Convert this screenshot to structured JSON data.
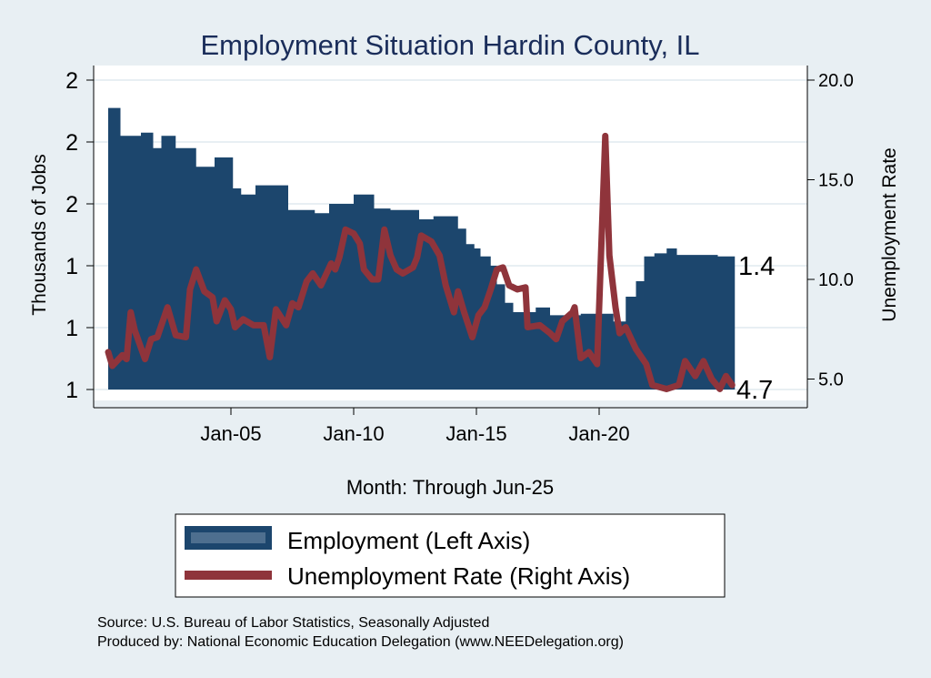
{
  "chart_data": {
    "type": "bar+line",
    "title": "Employment Situation Hardin  County, IL",
    "xlabel": "Month: Through Jun-25",
    "ylabel_left": "Thousands of Jobs",
    "ylabel_right": "Unemployment Rate",
    "x_ticks": [
      {
        "date": "2005-01",
        "label": "Jan-05"
      },
      {
        "date": "2010-01",
        "label": "Jan-10"
      },
      {
        "date": "2015-01",
        "label": "Jan-15"
      },
      {
        "date": "2020-01",
        "label": "Jan-20"
      }
    ],
    "y_left_ticks": [
      {
        "value": 2.0,
        "label": "2"
      },
      {
        "value": 1.8,
        "label": "2"
      },
      {
        "value": 1.6,
        "label": "2"
      },
      {
        "value": 1.4,
        "label": "1"
      },
      {
        "value": 1.2,
        "label": "1"
      },
      {
        "value": 1.0,
        "label": "1"
      }
    ],
    "y_right_ticks": [
      {
        "value": 20,
        "label": "20.0"
      },
      {
        "value": 15,
        "label": "15.0"
      },
      {
        "value": 10,
        "label": "10.0"
      },
      {
        "value": 5,
        "label": "5.0"
      }
    ],
    "ylim_left": [
      1.0,
      2.0
    ],
    "ylim_right": [
      4.7,
      20.0
    ],
    "grid": true,
    "legend_position": "bottom",
    "colors": {
      "employment": "#1c466d",
      "unemployment": "#8f343b",
      "background": "#e8eff3",
      "title": "#1a2d5a"
    },
    "series": [
      {
        "name": "Employment (Left Axis)",
        "type": "area-step",
        "axis": "left",
        "end_label": "1.4",
        "points": [
          [
            "2000-01",
            1.91
          ],
          [
            "2000-07",
            1.82
          ],
          [
            "2001-05",
            1.83
          ],
          [
            "2001-11",
            1.78
          ],
          [
            "2002-03",
            1.82
          ],
          [
            "2002-10",
            1.78
          ],
          [
            "2003-08",
            1.72
          ],
          [
            "2004-05",
            1.75
          ],
          [
            "2005-02",
            1.65
          ],
          [
            "2005-06",
            1.63
          ],
          [
            "2006-01",
            1.66
          ],
          [
            "2007-05",
            1.58
          ],
          [
            "2008-06",
            1.57
          ],
          [
            "2009-01",
            1.6
          ],
          [
            "2010-01",
            1.63
          ],
          [
            "2010-11",
            1.585
          ],
          [
            "2011-07",
            1.58
          ],
          [
            "2012-09",
            1.55
          ],
          [
            "2013-04",
            1.56
          ],
          [
            "2014-04",
            1.52
          ],
          [
            "2014-08",
            1.47
          ],
          [
            "2014-12",
            1.456
          ],
          [
            "2015-03",
            1.43
          ],
          [
            "2015-08",
            1.4
          ],
          [
            "2015-11",
            1.34
          ],
          [
            "2016-03",
            1.28
          ],
          [
            "2016-07",
            1.25
          ],
          [
            "2017-06",
            1.265
          ],
          [
            "2018-01",
            1.24
          ],
          [
            "2019-04",
            1.245
          ],
          [
            "2020-08",
            1.22
          ],
          [
            "2021-02",
            1.3
          ],
          [
            "2021-07",
            1.35
          ],
          [
            "2021-11",
            1.43
          ],
          [
            "2022-04",
            1.44
          ],
          [
            "2022-10",
            1.456
          ],
          [
            "2023-03",
            1.435
          ],
          [
            "2024-11",
            1.43
          ],
          [
            "2025-06",
            1.43
          ]
        ]
      },
      {
        "name": "Unemployment Rate (Right Axis)",
        "type": "line",
        "axis": "right",
        "end_label": "4.7",
        "points": [
          [
            "2000-01",
            6.35
          ],
          [
            "2000-03",
            5.66
          ],
          [
            "2000-08",
            6.2
          ],
          [
            "2000-10",
            6.0
          ],
          [
            "2000-12",
            8.35
          ],
          [
            "2001-02",
            7.44
          ],
          [
            "2001-07",
            6.0
          ],
          [
            "2001-10",
            7.0
          ],
          [
            "2002-01",
            7.1
          ],
          [
            "2002-06",
            8.6
          ],
          [
            "2002-10",
            7.2
          ],
          [
            "2003-03",
            7.1
          ],
          [
            "2003-05",
            9.5
          ],
          [
            "2003-08",
            10.5
          ],
          [
            "2003-12",
            9.4
          ],
          [
            "2004-04",
            9.1
          ],
          [
            "2004-06",
            7.9
          ],
          [
            "2004-10",
            8.95
          ],
          [
            "2005-01",
            8.5
          ],
          [
            "2005-03",
            7.6
          ],
          [
            "2005-07",
            8.0
          ],
          [
            "2005-12",
            7.7
          ],
          [
            "2006-05",
            7.7
          ],
          [
            "2006-08",
            6.1
          ],
          [
            "2006-11",
            8.5
          ],
          [
            "2007-04",
            7.7
          ],
          [
            "2007-07",
            8.8
          ],
          [
            "2007-10",
            8.6
          ],
          [
            "2008-02",
            9.9
          ],
          [
            "2008-05",
            10.3
          ],
          [
            "2008-09",
            9.7
          ],
          [
            "2009-02",
            10.8
          ],
          [
            "2009-04",
            10.5
          ],
          [
            "2009-06",
            11.1
          ],
          [
            "2009-09",
            12.5
          ],
          [
            "2010-01",
            12.3
          ],
          [
            "2010-04",
            11.8
          ],
          [
            "2010-06",
            10.5
          ],
          [
            "2010-10",
            10.0
          ],
          [
            "2011-01",
            10.0
          ],
          [
            "2011-04",
            12.5
          ],
          [
            "2011-07",
            11.2
          ],
          [
            "2011-10",
            10.5
          ],
          [
            "2012-01",
            10.3
          ],
          [
            "2012-06",
            10.6
          ],
          [
            "2012-08",
            11.1
          ],
          [
            "2012-10",
            12.2
          ],
          [
            "2013-03",
            11.9
          ],
          [
            "2013-07",
            11.2
          ],
          [
            "2013-10",
            9.7
          ],
          [
            "2014-02",
            8.35
          ],
          [
            "2014-04",
            9.4
          ],
          [
            "2014-07",
            8.35
          ],
          [
            "2014-11",
            7.1
          ],
          [
            "2015-02",
            8.2
          ],
          [
            "2015-05",
            8.6
          ],
          [
            "2015-08",
            9.5
          ],
          [
            "2015-11",
            10.5
          ],
          [
            "2016-02",
            10.6
          ],
          [
            "2016-05",
            9.7
          ],
          [
            "2016-09",
            9.5
          ],
          [
            "2017-01",
            9.6
          ],
          [
            "2017-02",
            7.6
          ],
          [
            "2017-08",
            7.7
          ],
          [
            "2018-01",
            7.3
          ],
          [
            "2018-04",
            7.0
          ],
          [
            "2018-07",
            7.9
          ],
          [
            "2018-12",
            8.35
          ],
          [
            "2019-01",
            8.6
          ],
          [
            "2019-04",
            6.05
          ],
          [
            "2019-08",
            6.35
          ],
          [
            "2019-12",
            5.75
          ],
          [
            "2020-04",
            17.2
          ],
          [
            "2020-06",
            11.2
          ],
          [
            "2020-09",
            8.6
          ],
          [
            "2020-11",
            7.3
          ],
          [
            "2021-02",
            7.6
          ],
          [
            "2021-07",
            6.5
          ],
          [
            "2021-12",
            5.75
          ],
          [
            "2022-03",
            4.7
          ],
          [
            "2022-10",
            4.5
          ],
          [
            "2023-04",
            4.7
          ],
          [
            "2023-07",
            5.9
          ],
          [
            "2023-12",
            5.15
          ],
          [
            "2024-04",
            5.9
          ],
          [
            "2024-08",
            5.0
          ],
          [
            "2024-12",
            4.5
          ],
          [
            "2025-03",
            5.15
          ],
          [
            "2025-06",
            4.7
          ]
        ]
      }
    ],
    "notes": [
      "Source: U.S. Bureau of Labor Statistics, Seasonally Adjusted",
      "Produced by: National Economic Education Delegation (www.NEEDelegation.org)"
    ]
  }
}
